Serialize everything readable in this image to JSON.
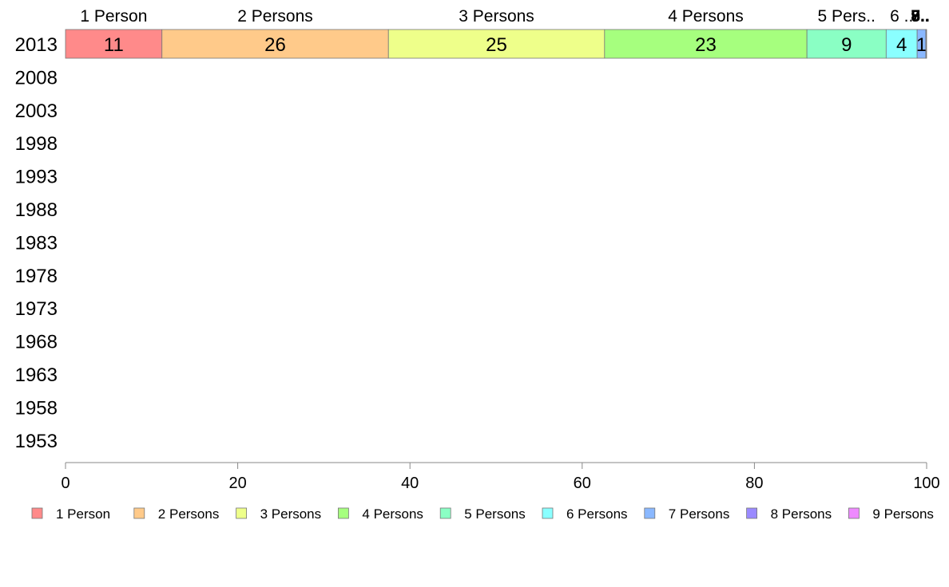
{
  "chart_data": {
    "type": "bar",
    "orientation": "horizontal",
    "stacked": true,
    "categories": [
      "2013",
      "2008",
      "2003",
      "1998",
      "1993",
      "1988",
      "1983",
      "1978",
      "1973",
      "1968",
      "1963",
      "1958",
      "1953"
    ],
    "series": [
      {
        "name": "1 Person",
        "color": "#ff8a8a",
        "values": [
          11.2,
          null,
          null,
          null,
          null,
          null,
          null,
          null,
          null,
          null,
          null,
          null,
          null
        ],
        "data_label": "11",
        "top_label": "1 Person"
      },
      {
        "name": "2 Persons",
        "color": "#ffca8a",
        "values": [
          26.3,
          null,
          null,
          null,
          null,
          null,
          null,
          null,
          null,
          null,
          null,
          null,
          null
        ],
        "data_label": "26",
        "top_label": "2 Persons"
      },
      {
        "name": "3 Persons",
        "color": "#eeff8a",
        "values": [
          25.1,
          null,
          null,
          null,
          null,
          null,
          null,
          null,
          null,
          null,
          null,
          null,
          null
        ],
        "data_label": "25",
        "top_label": "3 Persons"
      },
      {
        "name": "4 Persons",
        "color": "#a6ff7e",
        "values": [
          23.5,
          null,
          null,
          null,
          null,
          null,
          null,
          null,
          null,
          null,
          null,
          null,
          null
        ],
        "data_label": "23",
        "top_label": "4 Persons"
      },
      {
        "name": "5 Persons",
        "color": "#8affc4",
        "values": [
          9.2,
          null,
          null,
          null,
          null,
          null,
          null,
          null,
          null,
          null,
          null,
          null,
          null
        ],
        "data_label": "9",
        "top_label": "5 Pers.."
      },
      {
        "name": "6 Persons",
        "color": "#8affff",
        "values": [
          3.6,
          null,
          null,
          null,
          null,
          null,
          null,
          null,
          null,
          null,
          null,
          null,
          null
        ],
        "data_label": "4",
        "top_label": "6 .."
      },
      {
        "name": "7 Persons",
        "color": "#8ab8ff",
        "values": [
          1.0,
          null,
          null,
          null,
          null,
          null,
          null,
          null,
          null,
          null,
          null,
          null,
          null
        ],
        "data_label": "1",
        "top_label": "7.."
      },
      {
        "name": "8 Persons",
        "color": "#9a8aff",
        "values": [
          0.05,
          null,
          null,
          null,
          null,
          null,
          null,
          null,
          null,
          null,
          null,
          null,
          null
        ],
        "data_label": "",
        "top_label": "8.."
      },
      {
        "name": "9 Persons",
        "color": "#ee8aff",
        "values": [
          0.05,
          null,
          null,
          null,
          null,
          null,
          null,
          null,
          null,
          null,
          null,
          null,
          null
        ],
        "data_label": "",
        "top_label": "9.."
      }
    ],
    "xlim": [
      0,
      100
    ],
    "xticks": [
      0,
      20,
      40,
      60,
      80,
      100
    ],
    "title": "",
    "xlabel": "",
    "ylabel": "",
    "grid": false,
    "legend": {
      "position": "bottom"
    }
  }
}
